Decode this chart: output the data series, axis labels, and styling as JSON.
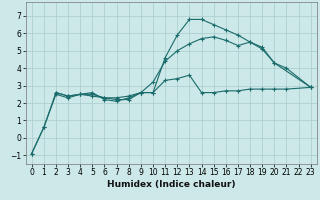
{
  "xlabel": "Humidex (Indice chaleur)",
  "bg_color": "#cce8e8",
  "line_color": "#1a6b6b",
  "grid_color": "#aacccc",
  "xlim": [
    -0.5,
    23.5
  ],
  "ylim": [
    -1.5,
    7.8
  ],
  "xticks": [
    0,
    1,
    2,
    3,
    4,
    5,
    6,
    7,
    8,
    9,
    10,
    11,
    12,
    13,
    14,
    15,
    16,
    17,
    18,
    19,
    20,
    21,
    22,
    23
  ],
  "yticks": [
    -1,
    0,
    1,
    2,
    3,
    4,
    5,
    6,
    7
  ],
  "line1_x": [
    0,
    1,
    2,
    3,
    4,
    5,
    6,
    7,
    8,
    9,
    10,
    11,
    12,
    13,
    14,
    15,
    16,
    17,
    18,
    19,
    20,
    21,
    23
  ],
  "line1_y": [
    -0.9,
    0.6,
    2.6,
    2.4,
    2.5,
    2.6,
    2.2,
    2.1,
    2.3,
    2.6,
    2.6,
    4.6,
    5.9,
    6.8,
    6.8,
    6.5,
    6.2,
    5.9,
    5.5,
    5.2,
    4.3,
    4.0,
    2.9
  ],
  "line2_x": [
    0,
    1,
    2,
    3,
    4,
    5,
    6,
    7,
    8,
    9,
    10,
    11,
    12,
    13,
    14,
    15,
    16,
    17,
    18,
    19,
    20,
    21,
    23
  ],
  "line2_y": [
    -0.9,
    0.6,
    2.5,
    2.3,
    2.5,
    2.4,
    2.3,
    2.2,
    2.2,
    2.6,
    2.6,
    3.3,
    3.4,
    3.6,
    2.6,
    2.6,
    2.7,
    2.7,
    2.8,
    2.8,
    2.8,
    2.8,
    2.9
  ],
  "line3_x": [
    2,
    3,
    4,
    5,
    6,
    7,
    8,
    9,
    10,
    11,
    12,
    13,
    14,
    15,
    16,
    17,
    18,
    19,
    20,
    23
  ],
  "line3_y": [
    2.6,
    2.4,
    2.5,
    2.5,
    2.3,
    2.3,
    2.4,
    2.6,
    3.2,
    4.4,
    5.0,
    5.4,
    5.7,
    5.8,
    5.6,
    5.3,
    5.5,
    5.1,
    4.3,
    2.9
  ],
  "tick_fontsize": 5.5,
  "xlabel_fontsize": 6.5,
  "marker_size": 3,
  "line_width": 0.8
}
